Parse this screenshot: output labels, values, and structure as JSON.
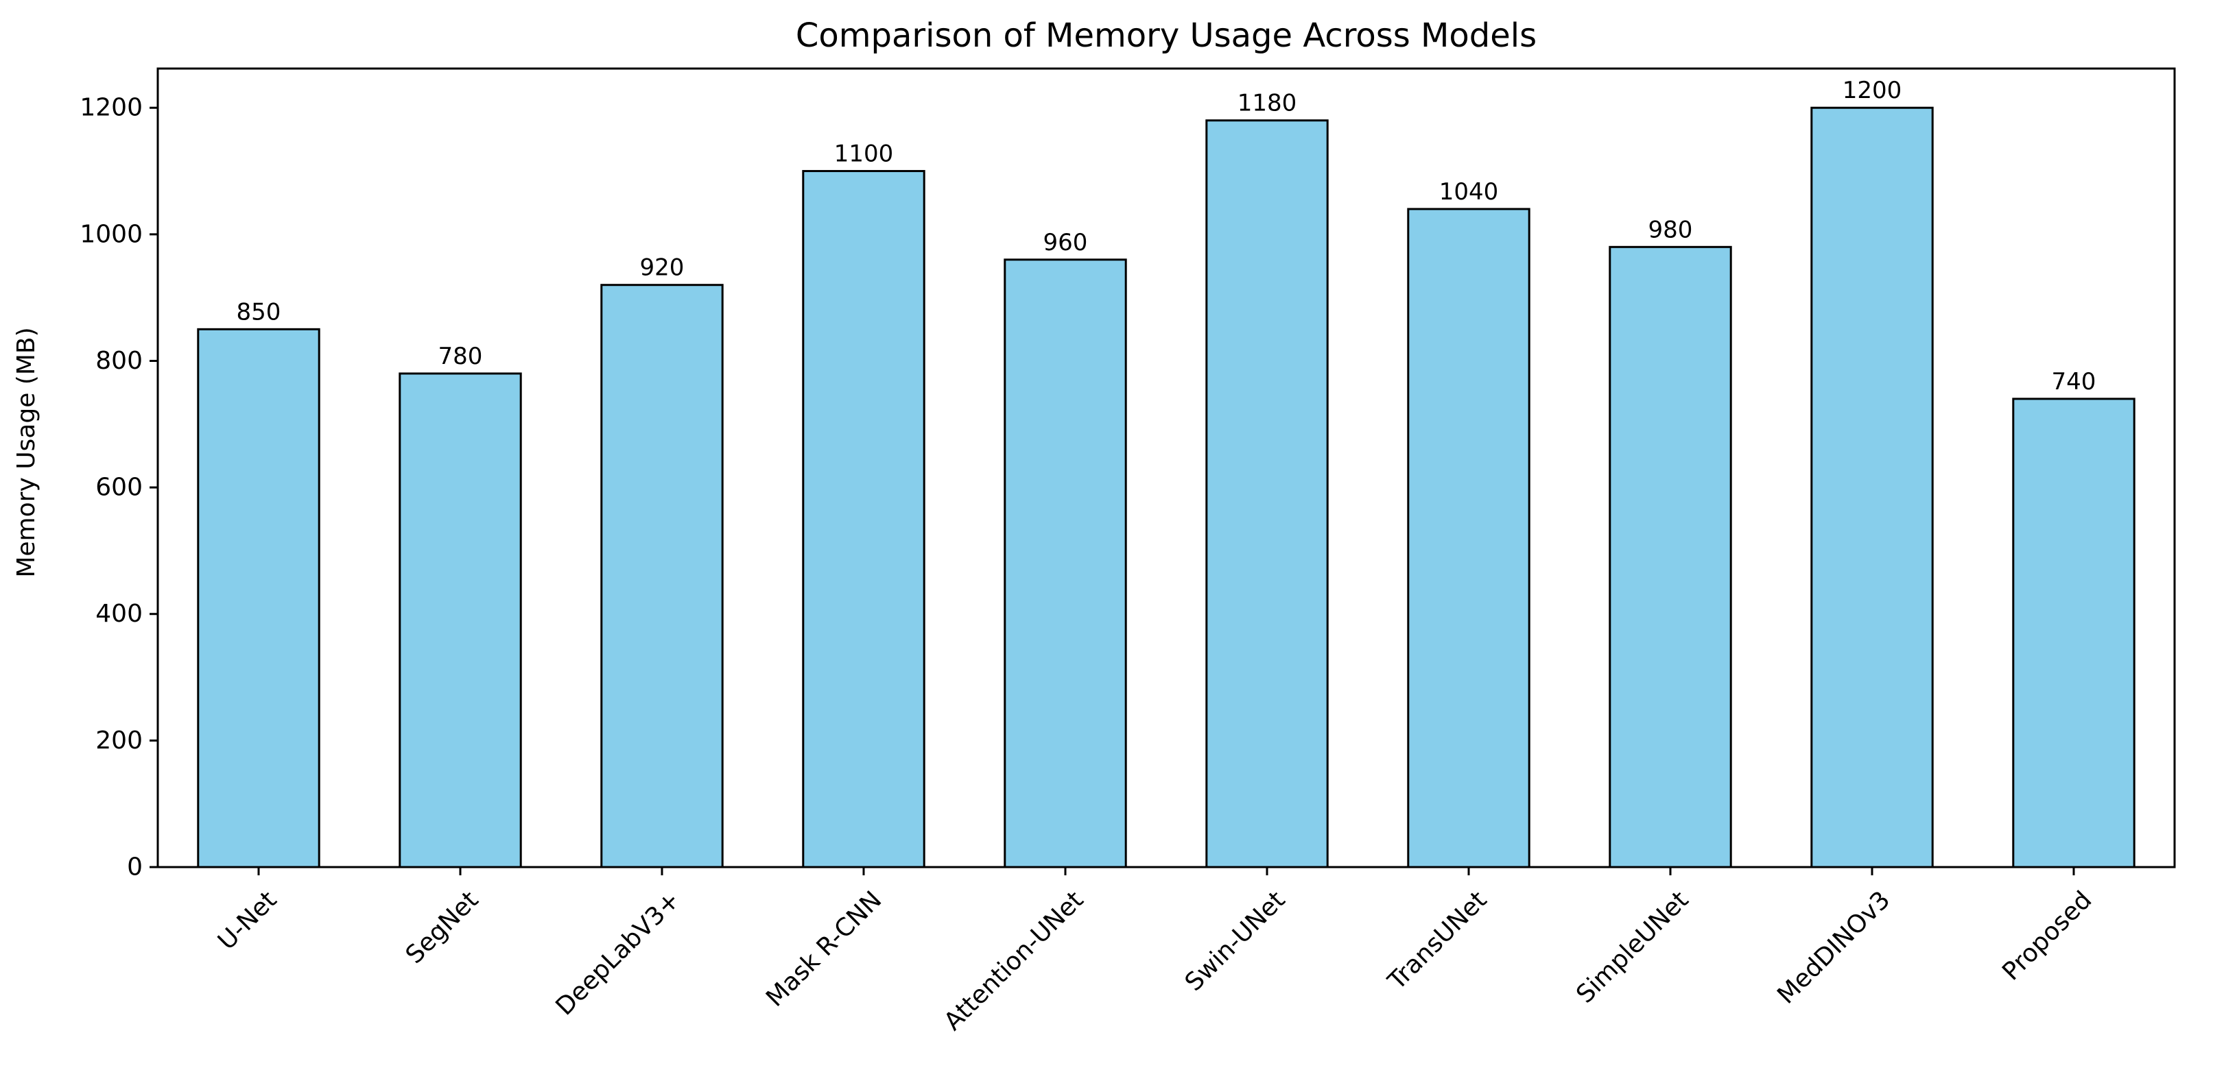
{
  "chart_data": {
    "type": "bar",
    "title": "Comparison of Memory Usage Across Models",
    "xlabel": "",
    "ylabel": "Memory Usage (MB)",
    "categories": [
      "U-Net",
      "SegNet",
      "DeepLabV3+",
      "Mask R-CNN",
      "Attention-UNet",
      "Swin-UNet",
      "TransUNet",
      "SimpleUNet",
      "MedDINOv3",
      "Proposed"
    ],
    "values": [
      850,
      780,
      920,
      1100,
      960,
      1180,
      1040,
      980,
      1200,
      740
    ],
    "value_labels": [
      "850",
      "780",
      "920",
      "1100",
      "960",
      "1180",
      "1040",
      "980",
      "1200",
      "740"
    ],
    "ylim": [
      0,
      1262
    ],
    "yticks": [
      0,
      200,
      400,
      600,
      800,
      1000,
      1200
    ],
    "ytick_labels": [
      "0",
      "200",
      "400",
      "600",
      "800",
      "1000",
      "1200"
    ],
    "grid": false,
    "legend": "none",
    "bar_color": "#87CEEB",
    "edge_color": "#000000",
    "x_tick_rotation_degrees": 45
  }
}
